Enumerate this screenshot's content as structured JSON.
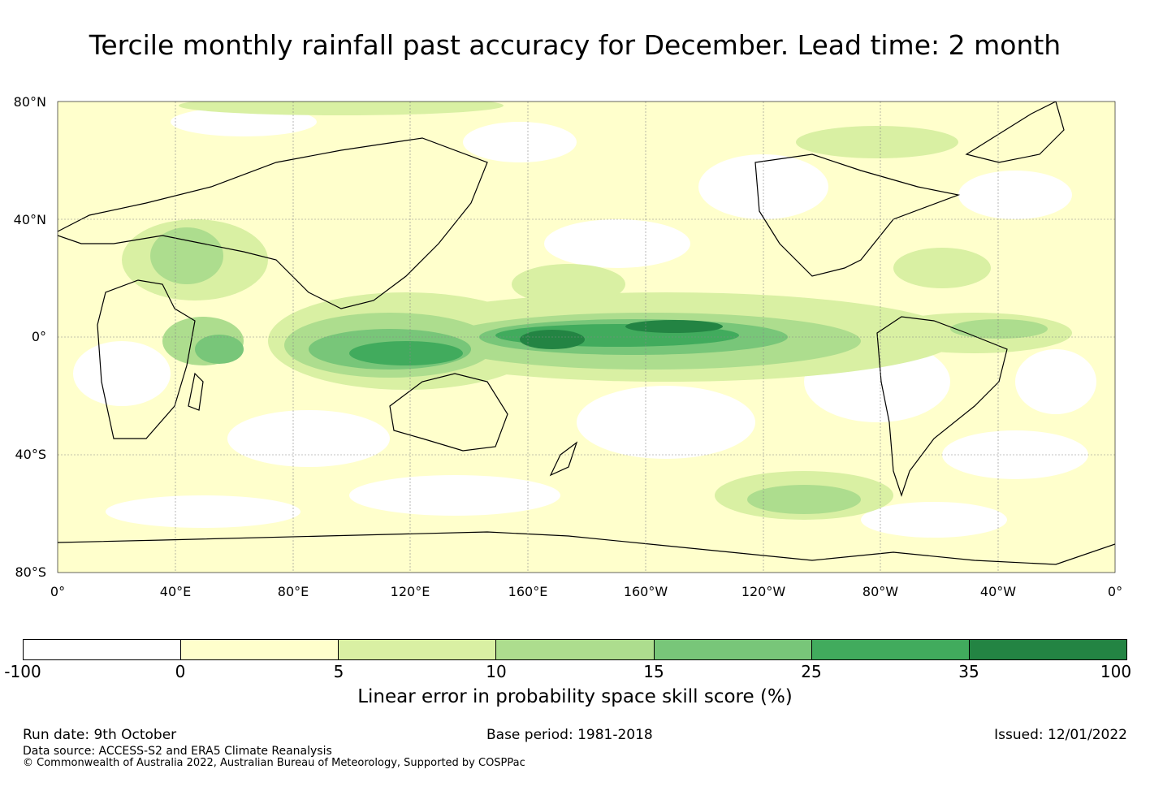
{
  "title": "Tercile monthly rainfall past accuracy for December. Lead time: 2 month",
  "map": {
    "lat_labels": [
      "80°N",
      "40°N",
      "0°",
      "40°S",
      "80°S"
    ],
    "lon_labels": [
      "0°",
      "40°E",
      "80°E",
      "120°E",
      "160°E",
      "160°W",
      "120°W",
      "80°W",
      "40°W",
      "0°"
    ],
    "lat_range": [
      -80,
      80
    ],
    "lon_range": [
      0,
      360
    ]
  },
  "colorbar": {
    "ticks": [
      "-100",
      "0",
      "5",
      "10",
      "15",
      "25",
      "35",
      "100"
    ],
    "colors": [
      "#ffffff",
      "#ffffcc",
      "#d9f0a3",
      "#addd8e",
      "#78c679",
      "#41ab5d",
      "#238443"
    ],
    "label": "Linear error in probability space skill score (%)"
  },
  "footer": {
    "run_date": "Run date: 9th October",
    "base_period": "Base period: 1981-2018",
    "issued": "Issued: 12/01/2022",
    "data_source": "Data source: ACCESS-S2 and ERA5 Climate Reanalysis",
    "copyright": "© Commonwealth of Australia 2022, Australian Bureau of Meteorology, Supported by COSPPac"
  }
}
